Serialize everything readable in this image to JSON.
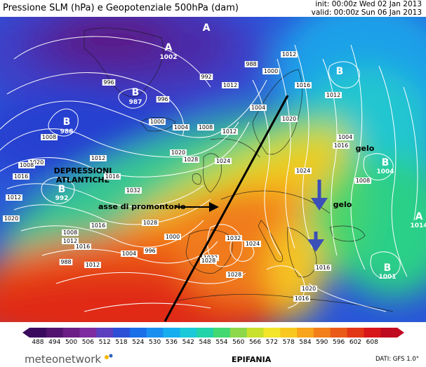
{
  "header": {
    "title": "Pressione SLM (hPa) e Geopotenziale 500hPa (dam)",
    "init": "init: 00:00z Wed 02 Jan 2013",
    "valid": "valid: 00:00z Sun 06 Jan 2013"
  },
  "map": {
    "pressure_centers": [
      {
        "letter": "A",
        "value": "1002"
      },
      {
        "letter": "B",
        "value": "987"
      },
      {
        "letter": "B",
        "value": "988"
      },
      {
        "letter": "B",
        "value": "992"
      },
      {
        "letter": "A",
        "value": ""
      },
      {
        "letter": "B",
        "value": ""
      },
      {
        "letter": "B",
        "value": "1004"
      },
      {
        "letter": "A",
        "value": "1014"
      },
      {
        "letter": "B",
        "value": "1001"
      }
    ],
    "annotations": {
      "depressions": [
        "DEPRESSIONI",
        "ATLANTICHE"
      ],
      "ridge_axis": "asse di promontorio",
      "gelo_1": "gelo",
      "gelo_2": "gelo"
    },
    "isobar_labels": [
      "996",
      "992",
      "996",
      "1000",
      "1004",
      "1008",
      "1012",
      "1012",
      "988",
      "1000",
      "1004",
      "1012",
      "1016",
      "1020",
      "1024",
      "1012",
      "1004",
      "1008",
      "1016",
      "1020",
      "1024",
      "1028",
      "1032",
      "1032",
      "1028",
      "1028",
      "1024",
      "1020",
      "1016",
      "1012",
      "1016",
      "1008",
      "1012",
      "988",
      "1008",
      "1020",
      "1016",
      "1012",
      "1020",
      "1008",
      "1016",
      "1004",
      "996",
      "1000",
      "1012",
      "1016",
      "1032",
      "1028",
      "1016"
    ]
  },
  "legend": {
    "units": "dam",
    "ticks": [
      "488",
      "494",
      "500",
      "506",
      "512",
      "518",
      "524",
      "530",
      "536",
      "542",
      "548",
      "554",
      "560",
      "566",
      "572",
      "578",
      "584",
      "590",
      "596",
      "602",
      "608"
    ],
    "colors": [
      "#3a0a5e",
      "#52146f",
      "#6b1f84",
      "#7e2ba0",
      "#5a3fbf",
      "#2d4fd6",
      "#1a6ee8",
      "#1b8ff0",
      "#17aef0",
      "#1bc9d8",
      "#22d2a8",
      "#43d872",
      "#8cd84a",
      "#c8e02e",
      "#f2e52a",
      "#f8c820",
      "#f8a41c",
      "#f27f1a",
      "#ea5a18",
      "#e23616",
      "#d8161a",
      "#c00a20"
    ]
  },
  "footer": {
    "brand": "meteonetwork",
    "event": "EPIFANIA",
    "dati": "DATI: GFS 1.0°"
  }
}
